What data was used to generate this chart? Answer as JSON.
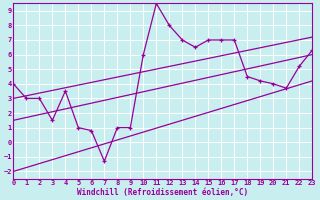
{
  "xlabel": "Windchill (Refroidissement éolien,°C)",
  "bg_color": "#c8eef0",
  "grid_color": "#ffffff",
  "line_color": "#990099",
  "xlim": [
    0,
    23
  ],
  "ylim": [
    -2.5,
    9.5
  ],
  "xticks": [
    0,
    1,
    2,
    3,
    4,
    5,
    6,
    7,
    8,
    9,
    10,
    11,
    12,
    13,
    14,
    15,
    16,
    17,
    18,
    19,
    20,
    21,
    22,
    23
  ],
  "yticks": [
    -2,
    -1,
    0,
    1,
    2,
    3,
    4,
    5,
    6,
    7,
    8,
    9
  ],
  "data_x": [
    0,
    1,
    2,
    3,
    4,
    5,
    6,
    7,
    8,
    9,
    10,
    11,
    12,
    13,
    14,
    15,
    16,
    17,
    18,
    19,
    20,
    21,
    22,
    23
  ],
  "data_y": [
    4.0,
    3.0,
    3.0,
    1.5,
    3.5,
    1.0,
    0.8,
    -1.3,
    1.0,
    1.0,
    6.0,
    9.5,
    8.0,
    7.0,
    6.5,
    7.0,
    7.0,
    7.0,
    4.5,
    4.2,
    4.0,
    3.7,
    5.2,
    6.3
  ],
  "reg_lines": [
    {
      "x": [
        0,
        23
      ],
      "y": [
        -2.0,
        4.2
      ]
    },
    {
      "x": [
        0,
        23
      ],
      "y": [
        1.5,
        6.0
      ]
    },
    {
      "x": [
        0,
        23
      ],
      "y": [
        3.0,
        7.2
      ]
    }
  ]
}
